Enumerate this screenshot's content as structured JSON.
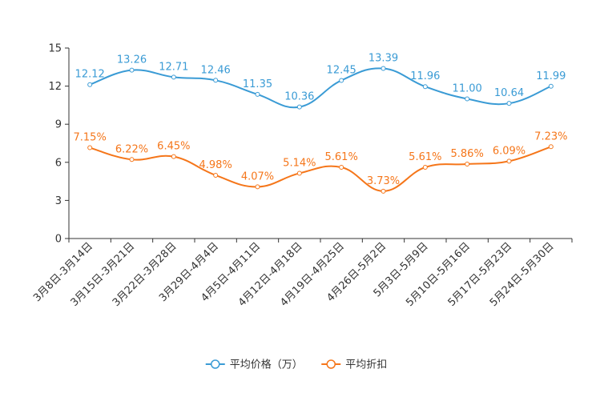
{
  "chart_data": {
    "type": "line",
    "title": "",
    "xlabel": "",
    "ylabel": "",
    "ylim": [
      0,
      15
    ],
    "yticks": [
      0,
      3,
      6,
      9,
      12,
      15
    ],
    "grid": false,
    "legend_position": "bottom-center",
    "categories": [
      "3月8日-3月14日",
      "3月15日-3月21日",
      "3月22日-3月28日",
      "3月29日-4月4日",
      "4月5日-4月11日",
      "4月12日-4月18日",
      "4月19日-4月25日",
      "4月26日-5月2日",
      "5月3日-5月9日",
      "5月10日-5月16日",
      "5月17日-5月23日",
      "5月24日-5月30日"
    ],
    "series": [
      {
        "name": "平均价格（万）",
        "color": "#3a9bd5",
        "values": [
          12.12,
          13.26,
          12.71,
          12.46,
          11.35,
          10.36,
          12.45,
          13.39,
          11.96,
          11.0,
          10.64,
          11.99
        ],
        "labels": [
          "12.12",
          "13.26",
          "12.71",
          "12.46",
          "11.35",
          "10.36",
          "12.45",
          "13.39",
          "11.96",
          "11.00",
          "10.64",
          "11.99"
        ]
      },
      {
        "name": "平均折扣",
        "color": "#f5761a",
        "values": [
          7.15,
          6.22,
          6.45,
          4.98,
          4.07,
          5.14,
          5.61,
          3.73,
          5.61,
          5.86,
          6.09,
          7.23
        ],
        "labels": [
          "7.15%",
          "6.22%",
          "6.45%",
          "4.98%",
          "4.07%",
          "5.14%",
          "5.61%",
          "3.73%",
          "5.61%",
          "5.86%",
          "6.09%",
          "7.23%"
        ]
      }
    ]
  }
}
